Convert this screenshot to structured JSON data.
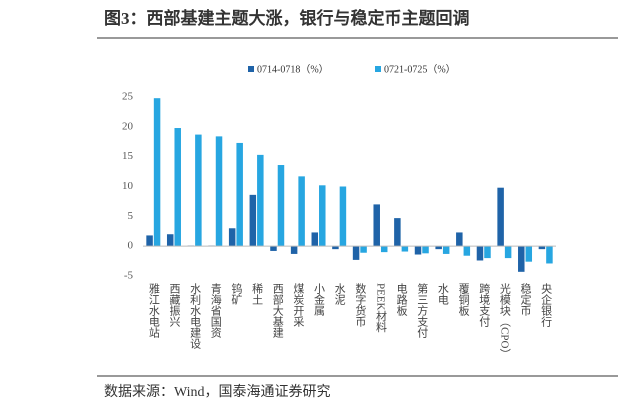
{
  "chart_data": {
    "type": "bar",
    "title": "图3：西部基建主题大涨，银行与稳定币主题回调",
    "source": "数据来源：Wind，国泰海通证券研究",
    "categories": [
      "雅江水电站",
      "西藏振兴",
      "水利水电建设",
      "青海省国资",
      "钨矿",
      "稀土",
      "西部大基建",
      "煤炭开采",
      "小金属",
      "水泥",
      "数字货币",
      "PEEK材料",
      "电路板",
      "第三方支付",
      "水电",
      "覆铜板",
      "跨境支付",
      "光模块（CPO）",
      "稳定币",
      "央企银行"
    ],
    "series": [
      {
        "name": "0714-0718（%）",
        "color": "#1f63a8",
        "values": [
          1.8,
          2.0,
          0.1,
          0.1,
          3.0,
          8.6,
          -0.8,
          -1.3,
          2.3,
          -0.5,
          -2.3,
          7.0,
          4.7,
          -1.4,
          -0.5,
          2.3,
          -2.4,
          9.8,
          -4.3,
          -0.5
        ]
      },
      {
        "name": "0721-0725（%）",
        "color": "#27a6e1",
        "values": [
          24.8,
          19.8,
          18.7,
          18.4,
          17.3,
          15.3,
          13.6,
          11.7,
          10.2,
          10.0,
          -1.1,
          -1.0,
          -0.9,
          -1.2,
          -1.3,
          -1.6,
          -2.0,
          -2.0,
          -2.6,
          -2.9
        ]
      }
    ],
    "ylim": [
      -5,
      25
    ],
    "yticks": [
      -5,
      0,
      5,
      10,
      15,
      20,
      25
    ],
    "grid": false
  }
}
